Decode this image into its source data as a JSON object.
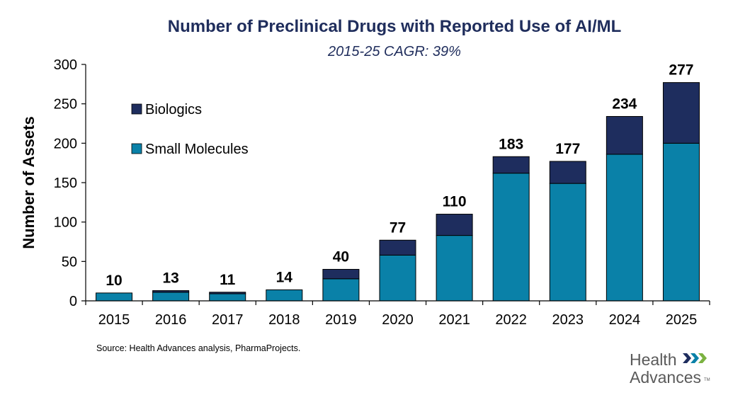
{
  "colors": {
    "small_molecules": "#0a81a8",
    "biologics": "#1e2d5e",
    "title": "#1f2d5c",
    "logo_text": "#5a5a5a",
    "logo_chevrons": [
      "#1e2d5e",
      "#0a81a8",
      "#7bb241"
    ]
  },
  "chart_data": {
    "type": "bar",
    "stacked": true,
    "title": "Number of Preclinical Drugs with Reported Use of AI/ML",
    "subtitle": "2015-25 CAGR: 39%",
    "xlabel": "",
    "ylabel": "Number of Assets",
    "ylim": [
      0,
      300
    ],
    "yticks": [
      0,
      50,
      100,
      150,
      200,
      250,
      300
    ],
    "categories": [
      "2015",
      "2016",
      "2017",
      "2018",
      "2019",
      "2020",
      "2021",
      "2022",
      "2023",
      "2024",
      "2025"
    ],
    "series": [
      {
        "name": "Small Molecules",
        "values": [
          10,
          11,
          9,
          14,
          28,
          58,
          83,
          162,
          149,
          186,
          200
        ]
      },
      {
        "name": "Biologics",
        "values": [
          0,
          2,
          2,
          0,
          12,
          19,
          27,
          21,
          28,
          48,
          77
        ]
      }
    ],
    "totals": [
      10,
      13,
      11,
      14,
      40,
      77,
      110,
      183,
      177,
      234,
      277
    ],
    "total_labels": [
      "10",
      "13",
      "11",
      "14",
      "40",
      "77",
      "110",
      "183",
      "177",
      "234",
      "277"
    ],
    "legend": [
      "Biologics",
      "Small Molecules"
    ],
    "legend_position": "top-left",
    "grid": false
  },
  "source": "Source:  Health Advances analysis, PharmaProjects.",
  "logo": {
    "line1": "Health",
    "line2": "Advances",
    "tm": "TM"
  }
}
